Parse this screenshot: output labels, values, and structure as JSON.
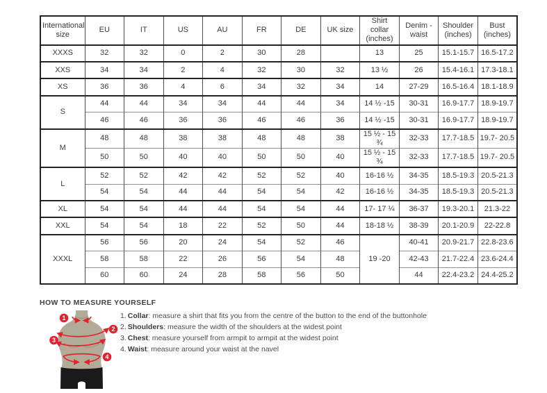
{
  "size_table": {
    "headers": [
      "International size",
      "EU",
      "IT",
      "US",
      "AU",
      "FR",
      "DE",
      "UK size",
      "Shirt collar (inches)",
      "Denim - waist",
      "Shoulder (inches)",
      "Bust (inches)"
    ],
    "groups": [
      {
        "label": "XXXS",
        "rows": [
          [
            "32",
            "32",
            "0",
            "2",
            "30",
            "28",
            "",
            "13",
            "25",
            "15.1-15.7",
            "16.5-17.2"
          ]
        ]
      },
      {
        "label": "XXS",
        "rows": [
          [
            "34",
            "34",
            "2",
            "4",
            "32",
            "30",
            "32",
            "13 ½",
            "26",
            "15.4-16.1",
            "17.3-18.1"
          ]
        ]
      },
      {
        "label": "XS",
        "rows": [
          [
            "36",
            "36",
            "4",
            "6",
            "34",
            "32",
            "34",
            "14",
            "27-29",
            "16.5-16.4",
            "18.1-18.9"
          ]
        ]
      },
      {
        "label": "S",
        "rows": [
          [
            "44",
            "44",
            "34",
            "34",
            "44",
            "44",
            "34",
            "14 ½ -15",
            "30-31",
            "16.9-17.7",
            "18.9-19.7"
          ],
          [
            "46",
            "46",
            "36",
            "36",
            "46",
            "46",
            "36",
            "14 ½ -15",
            "30-31",
            "16.9-17.7",
            "18.9-19.7"
          ]
        ]
      },
      {
        "label": "M",
        "rows": [
          [
            "48",
            "48",
            "38",
            "38",
            "48",
            "48",
            "38",
            "15 ½ - 15 ¾",
            "32-33",
            "17.7-18.5",
            "19.7- 20.5"
          ],
          [
            "50",
            "50",
            "40",
            "40",
            "50",
            "50",
            "40",
            "15 ½ - 15 ¾",
            "32-33",
            "17.7-18.5",
            "19.7- 20.5"
          ]
        ]
      },
      {
        "label": "L",
        "rows": [
          [
            "52",
            "52",
            "42",
            "42",
            "52",
            "52",
            "40",
            "16-16 ½",
            "34-35",
            "18.5-19.3",
            "20.5-21.3"
          ],
          [
            "54",
            "54",
            "44",
            "44",
            "54",
            "54",
            "42",
            "16-16 ½",
            "34-35",
            "18.5-19.3",
            "20.5-21.3"
          ]
        ]
      },
      {
        "label": "XL",
        "rows": [
          [
            "54",
            "54",
            "44",
            "44",
            "54",
            "54",
            "44",
            "17- 17 ¼",
            "36-37",
            "19.3-20.1",
            "21.3-22"
          ]
        ]
      },
      {
        "label": "XXL",
        "rows": [
          [
            "54",
            "54",
            "18",
            "22",
            "52",
            "50",
            "44",
            "18-18 ½",
            "38-39",
            "20.1-20.9",
            "22-22.8"
          ]
        ]
      },
      {
        "label": "XXXL",
        "merged_collar": "19 -20",
        "rows": [
          [
            "56",
            "56",
            "20",
            "24",
            "54",
            "52",
            "46",
            null,
            "40-41",
            "20.9-21.7",
            "22.8-23.6"
          ],
          [
            "58",
            "58",
            "22",
            "26",
            "56",
            "54",
            "48",
            null,
            "42-43",
            "21.7-22.4",
            "23.6-24.4"
          ],
          [
            "60",
            "60",
            "24",
            "28",
            "58",
            "56",
            "50",
            null,
            "44",
            "22.4-23.2",
            "24.4-25.2"
          ]
        ]
      }
    ]
  },
  "measure_guide": {
    "heading": "HOW TO MEASURE YOURSELF",
    "items": [
      {
        "num": "1.",
        "label": "Collar",
        "text": ": measure a shirt that fits you from the centre of the button to the end of the buttonhole"
      },
      {
        "num": "2.",
        "label": "Shoulders",
        "text": ": measure the width of the shoulders at the widest point"
      },
      {
        "num": "3.",
        "label": "Chest",
        "text": ": measure yourself from armpit to armpit at the widest point"
      },
      {
        "num": "4.",
        "label": "Waist",
        "text": ": measure around your waist at the navel"
      }
    ],
    "callouts": [
      "1",
      "2",
      "3",
      "4"
    ],
    "colors": {
      "accent_red": "#e2232e",
      "mannequin_tan": "#b2ab98",
      "shorts_black": "#1a1a1a",
      "border_dark": "#222222",
      "border_light": "#8f8f8f"
    }
  }
}
